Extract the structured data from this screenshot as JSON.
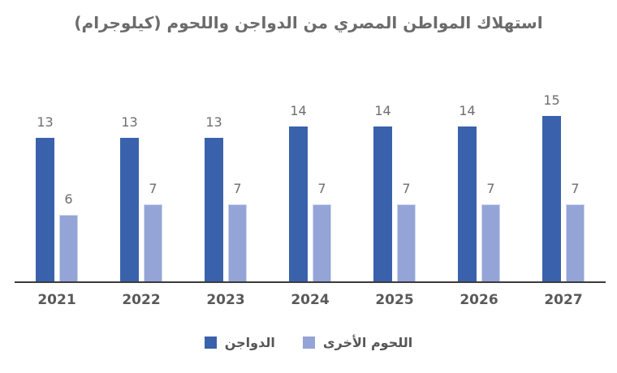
{
  "title": "استهلاك المواطن المصري من الدواجن واللحوم (كيلوجرام)",
  "chart_data": {
    "type": "bar",
    "title": "استهلاك المواطن المصري من الدواجن واللحوم (كيلوجرام)",
    "categories": [
      "2021",
      "2022",
      "2023",
      "2024",
      "2025",
      "2026",
      "2027"
    ],
    "series": [
      {
        "name": "الدواجن",
        "color": "#3a62ac",
        "values": [
          13,
          13,
          13,
          14,
          14,
          14,
          15
        ]
      },
      {
        "name": "اللحوم الأخرى",
        "color": "#94a4d6",
        "values": [
          6,
          7,
          7,
          7,
          7,
          7,
          7
        ]
      }
    ],
    "xlabel": "",
    "ylabel": "",
    "ylim": [
      0,
      17.4
    ],
    "grid": false,
    "legend_position": "bottom",
    "value_labels": true,
    "axis_line_color": "#3b3b3b"
  },
  "colors": {
    "series_dark": "#3a62ac",
    "series_light": "#94a4d6",
    "title_text": "#6b6b6b",
    "value_label_text": "#6e6e6e",
    "axis_label_text": "#595959",
    "background": "#ffffff"
  }
}
